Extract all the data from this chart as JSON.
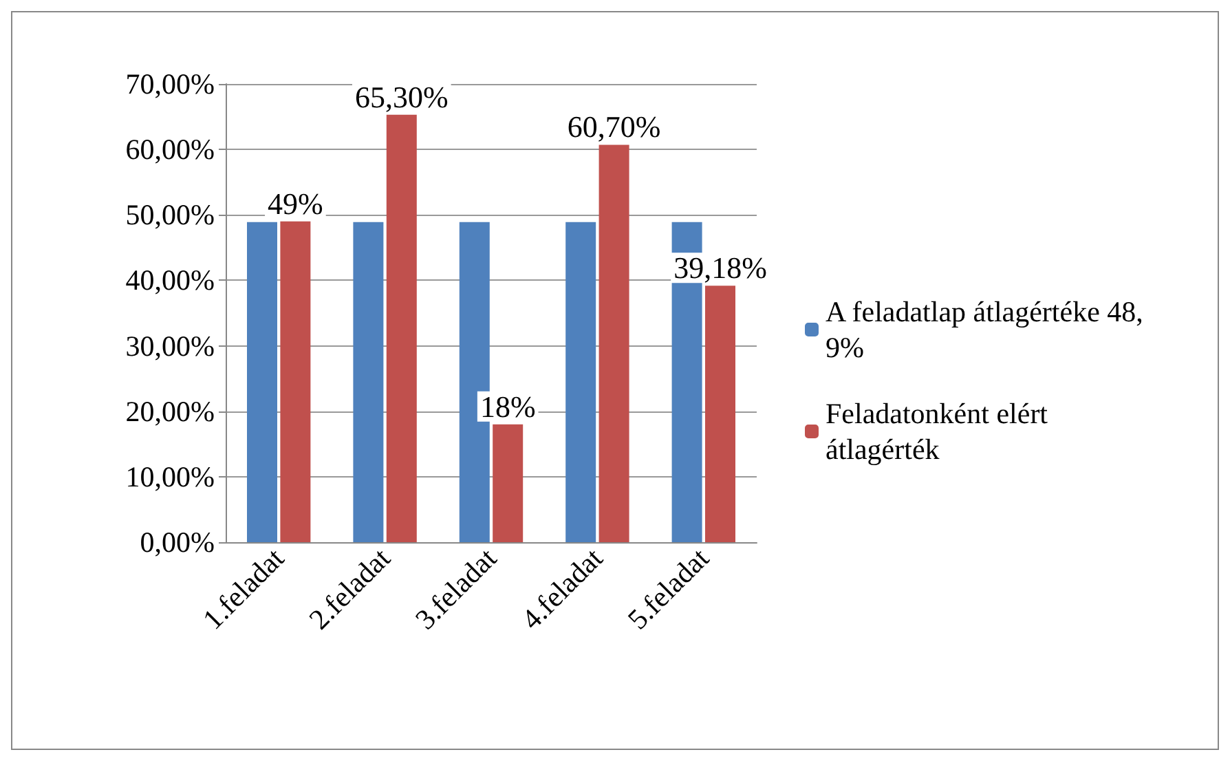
{
  "chart_data": {
    "type": "bar",
    "categories": [
      "1.feladat",
      "2.feladat",
      "3.feladat",
      "4.feladat",
      "5.feladat"
    ],
    "series": [
      {
        "name": "A feladatlap átlagértéke 48,9%",
        "color": "#4f81bd",
        "values": [
          48.9,
          48.9,
          48.9,
          48.9,
          48.9
        ]
      },
      {
        "name": "Feladatonként elért átlagérték",
        "color": "#c0504d",
        "values": [
          49,
          65.3,
          18,
          60.7,
          39.18
        ],
        "value_labels": [
          "49%",
          "65,30%",
          "18%",
          "60,70%",
          "39,18%"
        ]
      }
    ],
    "ylim": [
      0,
      70
    ],
    "yticks": [
      {
        "value": 0,
        "label": "0,00%"
      },
      {
        "value": 10,
        "label": "10,00%"
      },
      {
        "value": 20,
        "label": "20,00%"
      },
      {
        "value": 30,
        "label": "30,00%"
      },
      {
        "value": 40,
        "label": "40,00%"
      },
      {
        "value": 50,
        "label": "50,00%"
      },
      {
        "value": 60,
        "label": "60,00%"
      },
      {
        "value": 70,
        "label": "70,00%"
      }
    ],
    "grid": true,
    "legend": "right"
  }
}
